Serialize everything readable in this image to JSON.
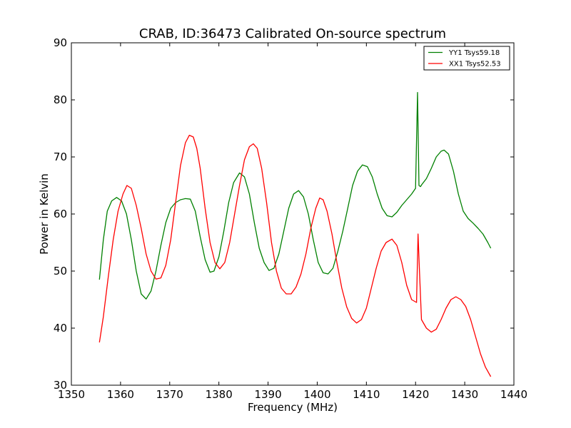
{
  "chart_data": {
    "type": "line",
    "title": "CRAB, ID:36473 Calibrated On-source spectrum",
    "xlabel": "Frequency (MHz)",
    "ylabel": "Power in Kelvin",
    "xlim": [
      1350,
      1440
    ],
    "ylim": [
      30,
      90
    ],
    "xticks": [
      1350,
      1360,
      1370,
      1380,
      1390,
      1400,
      1410,
      1420,
      1430,
      1440
    ],
    "yticks": [
      30,
      40,
      50,
      60,
      70,
      80,
      90
    ],
    "grid": false,
    "legend_position": "top-right",
    "series": [
      {
        "name": "YY1 Tsys59.18",
        "color": "#008000",
        "x": [
          1355.7,
          1356.5,
          1357.3,
          1358.2,
          1359.2,
          1360.2,
          1361.2,
          1362.2,
          1363.2,
          1364.2,
          1365.2,
          1366.2,
          1367.2,
          1368.2,
          1369.2,
          1370.2,
          1371.2,
          1372.2,
          1373.2,
          1374.2,
          1375.2,
          1376.2,
          1377.2,
          1378.2,
          1379.0,
          1380.0,
          1381.0,
          1382.0,
          1383.0,
          1384.2,
          1385.2,
          1386.2,
          1387.2,
          1388.2,
          1389.2,
          1390.2,
          1391.2,
          1392.2,
          1393.2,
          1394.2,
          1395.2,
          1396.2,
          1397.2,
          1398.2,
          1399.2,
          1400.2,
          1401.2,
          1402.2,
          1403.2,
          1404.2,
          1405.2,
          1406.2,
          1407.2,
          1408.2,
          1409.2,
          1410.2,
          1411.2,
          1412.2,
          1413.2,
          1414.2,
          1415.2,
          1416.2,
          1417.2,
          1418.2,
          1419.2,
          1420.0,
          1420.4,
          1420.7,
          1421.0,
          1421.3,
          1422.2,
          1423.2,
          1424.2,
          1425.2,
          1425.8,
          1426.7,
          1427.7,
          1428.7,
          1429.7,
          1430.7,
          1431.7,
          1432.7,
          1433.7,
          1434.7,
          1435.3
        ],
        "y": [
          48.5,
          55.5,
          60.5,
          62.3,
          62.9,
          62.3,
          60.0,
          55.5,
          50.0,
          46.0,
          45.1,
          46.5,
          50.0,
          54.5,
          58.5,
          61.0,
          62.0,
          62.5,
          62.7,
          62.6,
          60.5,
          56.0,
          52.0,
          49.8,
          50.0,
          52.5,
          57.0,
          62.0,
          65.5,
          67.2,
          66.5,
          63.5,
          58.5,
          54.0,
          51.5,
          50.1,
          50.5,
          53.0,
          57.0,
          61.0,
          63.5,
          64.1,
          63.0,
          60.0,
          55.5,
          51.5,
          49.7,
          49.5,
          50.5,
          53.5,
          57.0,
          61.0,
          65.0,
          67.5,
          68.6,
          68.3,
          66.5,
          63.5,
          61.0,
          59.7,
          59.5,
          60.3,
          61.5,
          62.5,
          63.5,
          64.5,
          81.3,
          65.0,
          64.8,
          65.2,
          66.2,
          68.0,
          70.0,
          71.0,
          71.2,
          70.5,
          67.5,
          63.5,
          60.5,
          59.2,
          58.4,
          57.5,
          56.5,
          55.0,
          54.0
        ]
      },
      {
        "name": "XX1 Tsys52.53",
        "color": "#ff0000",
        "x": [
          1355.7,
          1356.5,
          1357.5,
          1358.5,
          1359.5,
          1360.5,
          1361.3,
          1362.2,
          1363.2,
          1364.2,
          1365.2,
          1366.2,
          1367.2,
          1368.2,
          1369.2,
          1370.2,
          1371.2,
          1372.2,
          1373.2,
          1374.0,
          1374.8,
          1375.5,
          1376.2,
          1377.2,
          1378.2,
          1379.2,
          1380.2,
          1381.2,
          1382.2,
          1383.2,
          1384.2,
          1385.2,
          1386.2,
          1387.0,
          1387.8,
          1388.7,
          1389.7,
          1390.7,
          1391.7,
          1392.7,
          1393.7,
          1394.7,
          1395.7,
          1396.7,
          1397.7,
          1398.7,
          1399.7,
          1400.5,
          1401.2,
          1402.0,
          1403.0,
          1404.0,
          1405.0,
          1406.0,
          1407.0,
          1408.0,
          1409.0,
          1410.0,
          1411.0,
          1412.0,
          1413.0,
          1414.0,
          1415.2,
          1416.2,
          1417.2,
          1418.2,
          1419.2,
          1420.2,
          1420.5,
          1420.8,
          1421.2,
          1422.2,
          1423.2,
          1424.2,
          1425.2,
          1426.2,
          1427.2,
          1428.2,
          1429.2,
          1430.2,
          1431.2,
          1432.2,
          1433.2,
          1434.2,
          1435.3
        ],
        "y": [
          37.5,
          42.0,
          49.0,
          55.5,
          60.5,
          63.5,
          65.0,
          64.5,
          61.5,
          57.5,
          53.0,
          50.0,
          48.6,
          48.8,
          51.0,
          55.5,
          62.0,
          68.5,
          72.5,
          73.8,
          73.5,
          71.5,
          68.0,
          61.0,
          55.0,
          51.5,
          50.4,
          51.5,
          55.0,
          60.0,
          65.0,
          69.5,
          71.8,
          72.3,
          71.5,
          68.0,
          62.0,
          55.0,
          50.0,
          47.0,
          46.0,
          46.0,
          47.2,
          49.5,
          53.0,
          57.5,
          61.0,
          62.8,
          62.5,
          60.5,
          56.5,
          51.5,
          47.0,
          43.7,
          41.7,
          40.9,
          41.5,
          43.5,
          47.0,
          50.5,
          53.5,
          55.0,
          55.6,
          54.5,
          51.5,
          47.5,
          45.0,
          44.5,
          56.5,
          50.0,
          41.5,
          40.0,
          39.3,
          39.8,
          41.5,
          43.5,
          45.0,
          45.5,
          45.0,
          43.8,
          41.5,
          38.5,
          35.5,
          33.2,
          31.5
        ]
      }
    ]
  }
}
